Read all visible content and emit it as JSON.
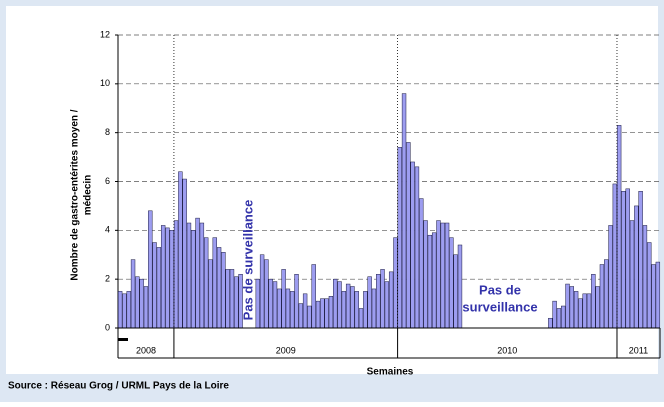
{
  "chart_data": {
    "type": "bar",
    "y_label": [
      "Nombre de gastro-entérites moyen /",
      "médecin"
    ],
    "x_label": "Semaines",
    "source": "Source : Réseau Grog / URML Pays de la Loire",
    "annotations": [
      "Pas de surveillance",
      "Pas de",
      "surveillance"
    ],
    "color": "#9d9df0",
    "grid": true,
    "ylim": [
      0,
      12
    ],
    "yticks": [
      0,
      2,
      4,
      6,
      8,
      10,
      12
    ],
    "categories": [
      "2008",
      "2008",
      "2008",
      "2008",
      "2008",
      "2008",
      "2008",
      "2008",
      "2008",
      "2008",
      "2008",
      "2008",
      "2008",
      "2009",
      "2009",
      "2009",
      "2009",
      "2009",
      "2009",
      "2009",
      "2009",
      "2009",
      "2009",
      "2009",
      "2009",
      "2009",
      "2009",
      "2009",
      "2009",
      "2009",
      "2009",
      "2009",
      "2009",
      "2009",
      "2009",
      "2009",
      "2009",
      "2009",
      "2009",
      "2009",
      "2009",
      "2009",
      "2009",
      "2009",
      "2009",
      "2009",
      "2009",
      "2009",
      "2009",
      "2009",
      "2009",
      "2009",
      "2009",
      "2009",
      "2009",
      "2009",
      "2009",
      "2009",
      "2009",
      "2009",
      "2009",
      "2009",
      "2009",
      "2009",
      "2009",
      "2010",
      "2010",
      "2010",
      "2010",
      "2010",
      "2010",
      "2010",
      "2010",
      "2010",
      "2010",
      "2010",
      "2010",
      "2010",
      "2010",
      "2010",
      "2010",
      "2010",
      "2010",
      "2010",
      "2010",
      "2010",
      "2010",
      "2010",
      "2010",
      "2010",
      "2010",
      "2010",
      "2010",
      "2010",
      "2010",
      "2010",
      "2010",
      "2010",
      "2010",
      "2010",
      "2010",
      "2010",
      "2010",
      "2010",
      "2010",
      "2010",
      "2010",
      "2010",
      "2010",
      "2010",
      "2010",
      "2010",
      "2010",
      "2010",
      "2010",
      "2010",
      "2011",
      "2011",
      "2011",
      "2011",
      "2011",
      "2011",
      "2011",
      "2011",
      "2011",
      "2011"
    ],
    "values": [
      1.5,
      1.4,
      1.5,
      2.8,
      2.1,
      2.0,
      1.7,
      4.8,
      3.5,
      3.3,
      4.2,
      4.1,
      4.0,
      4.4,
      6.4,
      6.1,
      4.3,
      4.0,
      4.5,
      4.3,
      3.7,
      2.8,
      3.7,
      3.3,
      3.1,
      2.4,
      2.4,
      2.1,
      2.2,
      null,
      null,
      null,
      2.0,
      3.0,
      2.8,
      2.0,
      1.9,
      1.6,
      2.4,
      1.6,
      1.5,
      2.2,
      1.0,
      1.4,
      0.9,
      2.6,
      1.1,
      1.2,
      1.2,
      1.3,
      2.0,
      1.9,
      1.5,
      1.8,
      1.7,
      1.5,
      0.8,
      1.5,
      2.1,
      1.6,
      2.2,
      2.4,
      1.9,
      2.3,
      3.7,
      7.4,
      9.6,
      7.6,
      6.8,
      6.6,
      5.3,
      4.4,
      3.8,
      3.9,
      4.4,
      4.3,
      4.3,
      3.7,
      3.0,
      3.4,
      null,
      null,
      null,
      null,
      null,
      null,
      null,
      null,
      null,
      null,
      null,
      null,
      null,
      null,
      null,
      null,
      null,
      null,
      null,
      null,
      0.4,
      1.1,
      0.8,
      0.9,
      1.8,
      1.7,
      1.5,
      1.2,
      1.4,
      1.4,
      2.2,
      1.7,
      2.6,
      2.8,
      4.2,
      5.9,
      8.3,
      5.6,
      5.7,
      4.4,
      5.0,
      5.6,
      4.2,
      3.5,
      2.6,
      2.7
    ]
  }
}
